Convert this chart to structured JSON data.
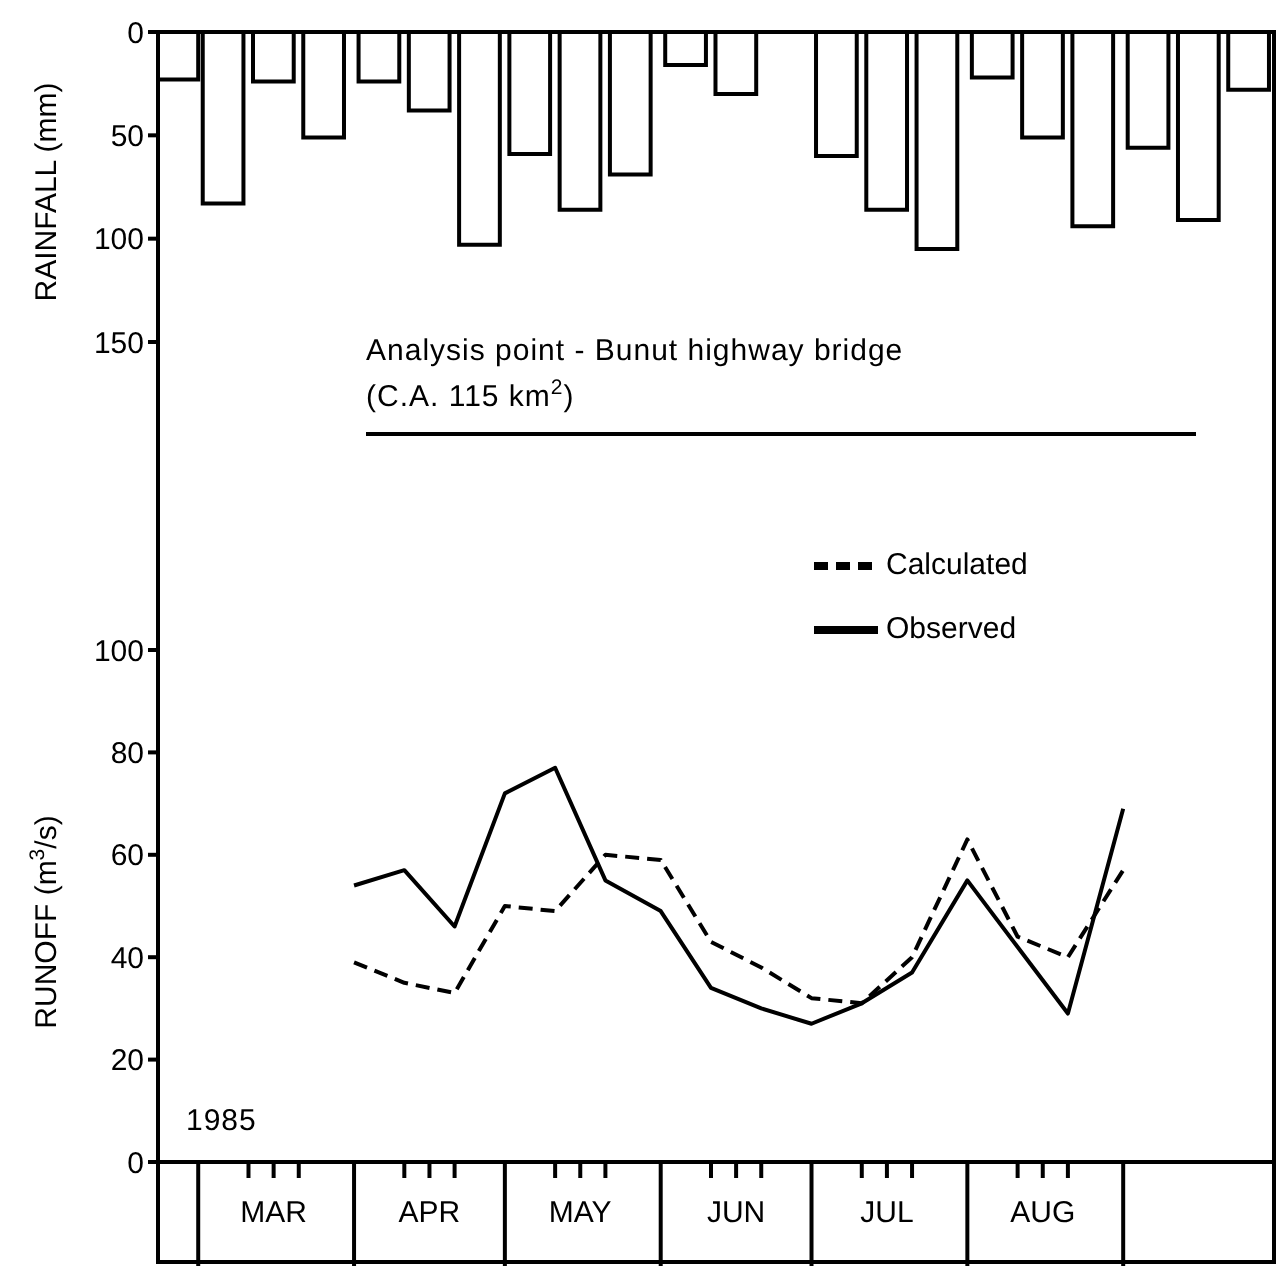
{
  "chart_data": [
    {
      "type": "bar",
      "ylabel": "RAINFALL (mm)",
      "annotations": [
        "Analysis point - Bunut highway bridge",
        "(C.A. 115 km$^{2}$)"
      ],
      "x": [
        "1985-02-25",
        "1985-03-06",
        "1985-03-16",
        "1985-03-26",
        "1985-04-06",
        "1985-04-16",
        "1985-04-26",
        "1985-05-06",
        "1985-05-16",
        "1985-05-26",
        "1985-06-06",
        "1985-06-16",
        "1985-06-26",
        "1985-07-06",
        "1985-07-16",
        "1985-07-26",
        "1985-08-06",
        "1985-08-16",
        "1985-08-26",
        "1985-09-06",
        "1985-09-16",
        "1985-09-26"
      ],
      "values": [
        23,
        83,
        24,
        51,
        24,
        38,
        103,
        59,
        86,
        69,
        16,
        30,
        0,
        60,
        86,
        105,
        22,
        51,
        94,
        56,
        91,
        28
      ],
      "color": "#ffffff",
      "xlim": [
        "1985-02-21",
        "1985-10-01"
      ],
      "ylim": [
        150,
        0
      ],
      "yticks": [
        0,
        50,
        100,
        150
      ],
      "tick_labels": "y"
    },
    {
      "type": "line",
      "ylabel": "RUNOFF (m$^{3}$/s)",
      "annotations": [
        "1985"
      ],
      "x": [
        "1985-04-01",
        "1985-04-11",
        "1985-04-21",
        "1985-05-01",
        "1985-05-11",
        "1985-05-21",
        "1985-06-01",
        "1985-06-11",
        "1985-06-21",
        "1985-07-01",
        "1985-07-11",
        "1985-07-21",
        "1985-08-01",
        "1985-08-11",
        "1985-08-21",
        "1985-09-01"
      ],
      "series": [
        {
          "name": "Observed",
          "color": "#000000",
          "line_style": "solid",
          "values": [
            54,
            57,
            46,
            72,
            77,
            55,
            49,
            34,
            30,
            27,
            31,
            37,
            55,
            42,
            29,
            69
          ]
        },
        {
          "name": "Calculated",
          "color": "#000000",
          "line_style": "dashed",
          "values": [
            39,
            35,
            33,
            50,
            49,
            60,
            59,
            43,
            38,
            32,
            31,
            40,
            63,
            44,
            40,
            57
          ]
        }
      ],
      "xlim": [
        "1985-02-21",
        "1985-10-01"
      ],
      "xticks": [
        {
          "value": "1985-03-01",
          "label": null
        },
        {
          "value": "1985-03-11",
          "label": null
        },
        {
          "value": "1985-03-16",
          "label": "MAR"
        },
        {
          "value": "1985-03-21",
          "label": null
        },
        {
          "value": "1985-04-01",
          "label": null
        },
        {
          "value": "1985-04-11",
          "label": null
        },
        {
          "value": "1985-04-16",
          "label": "APR"
        },
        {
          "value": "1985-04-21",
          "label": null
        },
        {
          "value": "1985-05-01",
          "label": null
        },
        {
          "value": "1985-05-11",
          "label": null
        },
        {
          "value": "1985-05-16",
          "label": "MAY"
        },
        {
          "value": "1985-05-21",
          "label": null
        },
        {
          "value": "1985-06-01",
          "label": null
        },
        {
          "value": "1985-06-11",
          "label": null
        },
        {
          "value": "1985-06-16",
          "label": "JUN"
        },
        {
          "value": "1985-06-21",
          "label": null
        },
        {
          "value": "1985-07-01",
          "label": null
        },
        {
          "value": "1985-07-11",
          "label": null
        },
        {
          "value": "1985-07-16",
          "label": "JUL"
        },
        {
          "value": "1985-07-21",
          "label": null
        },
        {
          "value": "1985-08-01",
          "label": null
        },
        {
          "value": "1985-08-11",
          "label": null
        },
        {
          "value": "1985-08-16",
          "label": "AUG"
        },
        {
          "value": "1985-08-21",
          "label": null
        },
        {
          "value": "1985-09-01",
          "label": null
        }
      ],
      "ylim": [
        0,
        100
      ],
      "yticks": [
        0,
        20,
        40,
        60,
        80,
        100
      ],
      "legend": "top right",
      "marker": "none"
    }
  ]
}
